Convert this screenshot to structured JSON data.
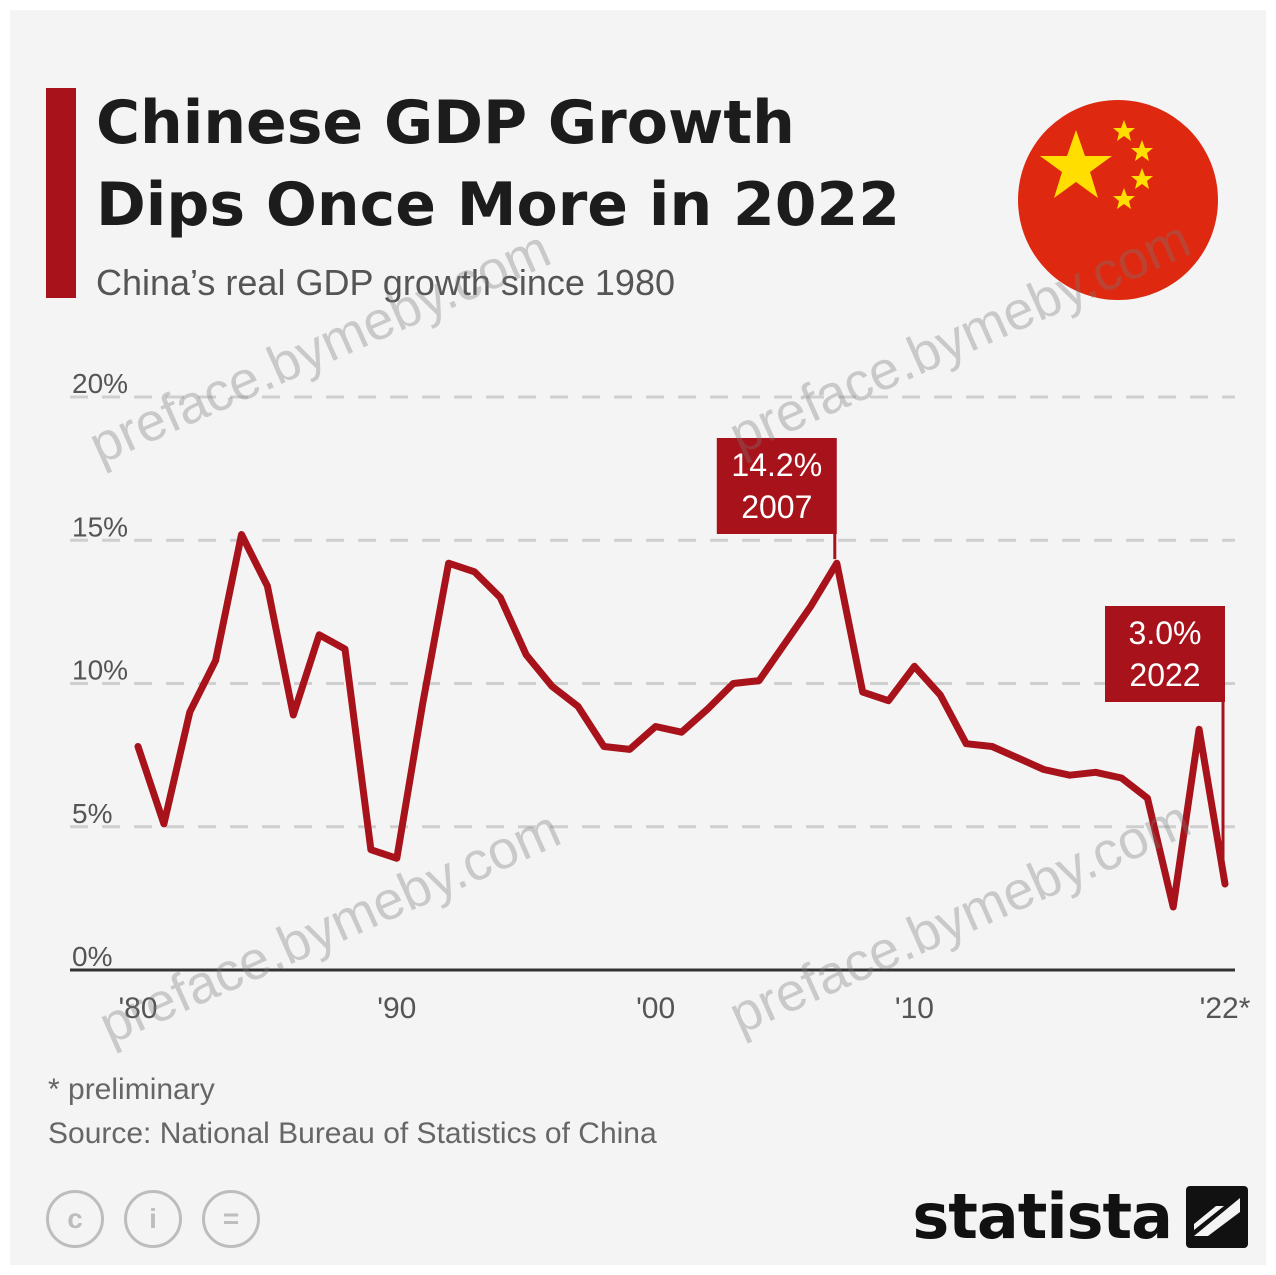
{
  "header": {
    "title_line1": "Chinese GDP Growth",
    "title_line2": "Dips Once More in 2022",
    "subtitle": "China’s real GDP growth since 1980"
  },
  "colors": {
    "accent": "#a8121a",
    "line": "#a8121a",
    "flag_red": "#de2910",
    "flag_star": "#ffde00"
  },
  "chart_data": {
    "type": "line",
    "title": "Chinese GDP Growth Dips Once More in 2022",
    "subtitle": "China’s real GDP growth since 1980",
    "xlabel": "",
    "ylabel": "",
    "ylim": [
      0,
      20
    ],
    "xlim": [
      1980,
      2022
    ],
    "grid": true,
    "y_ticks": [
      0,
      5,
      10,
      15,
      20
    ],
    "y_tick_labels": [
      "0%",
      "5%",
      "10%",
      "15%",
      "20%"
    ],
    "x_ticks": [
      1980,
      1990,
      2000,
      2010,
      2022
    ],
    "x_tick_labels": [
      "'80",
      "'90",
      "'00",
      "'10",
      "'22*"
    ],
    "x": [
      1980,
      1981,
      1982,
      1983,
      1984,
      1985,
      1986,
      1987,
      1988,
      1989,
      1990,
      1991,
      1992,
      1993,
      1994,
      1995,
      1996,
      1997,
      1998,
      1999,
      2000,
      2001,
      2002,
      2003,
      2004,
      2005,
      2006,
      2007,
      2008,
      2009,
      2010,
      2011,
      2012,
      2013,
      2014,
      2015,
      2016,
      2017,
      2018,
      2019,
      2020,
      2021,
      2022
    ],
    "series": [
      {
        "values": [
          7.8,
          5.1,
          9.0,
          10.8,
          15.2,
          13.4,
          8.9,
          11.7,
          11.2,
          4.2,
          3.9,
          9.3,
          14.2,
          13.9,
          13.0,
          11.0,
          9.9,
          9.2,
          7.8,
          7.7,
          8.5,
          8.3,
          9.1,
          10.0,
          10.1,
          11.4,
          12.7,
          14.2,
          9.7,
          9.4,
          10.6,
          9.6,
          7.9,
          7.8,
          7.4,
          7.0,
          6.8,
          6.9,
          6.7,
          6.0,
          2.2,
          8.4,
          3.0
        ]
      }
    ],
    "annotations": [
      {
        "x": 2007,
        "value_label": "14.2%",
        "year_label": "2007"
      },
      {
        "x": 2022,
        "value_label": "3.0%",
        "year_label": "2022"
      }
    ]
  },
  "footer": {
    "note": "* preliminary",
    "source": "Source: National Bureau of Statistics of China",
    "brand": "statista",
    "icons": [
      "cc-icon",
      "attribution-icon",
      "no-derivatives-icon"
    ]
  },
  "watermark": {
    "text": "preface.bymeby.com"
  }
}
